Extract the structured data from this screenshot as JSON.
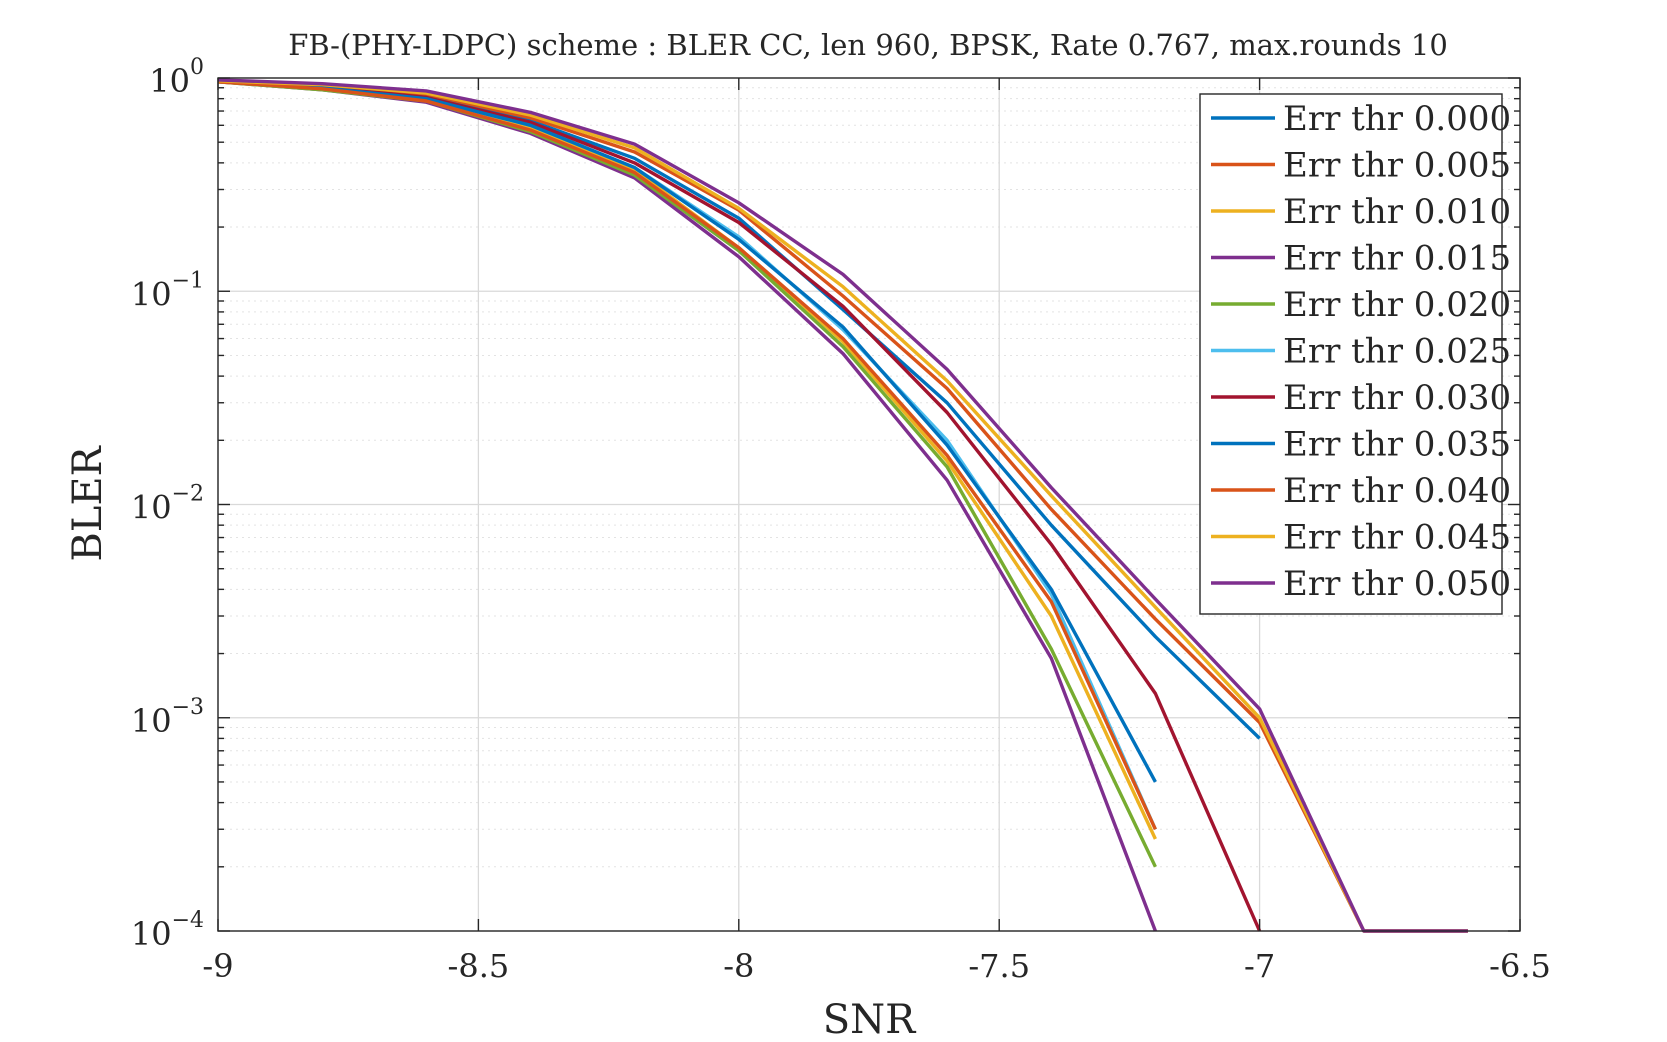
{
  "chart_data": {
    "type": "line",
    "title": "FB-(PHY-LDPC) scheme : BLER CC, len 960, BPSK, Rate 0.767, max.rounds 10",
    "xlabel": "SNR",
    "ylabel": "BLER",
    "xlim": [
      -9,
      -6.5
    ],
    "ylim": [
      0.0001,
      1
    ],
    "yscale": "log",
    "grid": true,
    "legend_position": "top-right",
    "x_ticks": [
      -9,
      -8.5,
      -8,
      -7.5,
      -7,
      -6.5
    ],
    "x_tick_labels": [
      "-9",
      "-8.5",
      "-8",
      "-7.5",
      "-7",
      "-6.5"
    ],
    "y_ticks": [
      {
        "base": "10",
        "exp": "0",
        "value": 1
      },
      {
        "base": "10",
        "exp": "−1",
        "value": 0.1
      },
      {
        "base": "10",
        "exp": "−2",
        "value": 0.01
      },
      {
        "base": "10",
        "exp": "−3",
        "value": 0.001
      },
      {
        "base": "10",
        "exp": "−4",
        "value": 0.0001
      }
    ],
    "series": [
      {
        "name": "Err thr 0.000",
        "color": "#0072BD",
        "x": [
          -9,
          -8.8,
          -8.6,
          -8.4,
          -8.2,
          -8.0,
          -7.8,
          -7.6,
          -7.4,
          -7.2,
          -7.0
        ],
        "y": [
          0.97,
          0.91,
          0.83,
          0.63,
          0.42,
          0.22,
          0.082,
          0.03,
          0.008,
          0.0024,
          0.0008
        ]
      },
      {
        "name": "Err thr 0.005",
        "color": "#D95319",
        "x": [
          -9,
          -8.8,
          -8.6,
          -8.4,
          -8.2,
          -8.0,
          -7.8,
          -7.6,
          -7.4,
          -7.2,
          -7.0,
          -6.8,
          -6.6
        ],
        "y": [
          0.97,
          0.92,
          0.84,
          0.65,
          0.45,
          0.24,
          0.095,
          0.035,
          0.0095,
          0.0029,
          0.00095,
          0.0001,
          0.0001
        ]
      },
      {
        "name": "Err thr 0.010",
        "color": "#EDB120",
        "x": [
          -9,
          -8.8,
          -8.6,
          -8.4,
          -8.2,
          -8.0,
          -7.8,
          -7.6,
          -7.4,
          -7.2
        ],
        "y": [
          0.96,
          0.89,
          0.79,
          0.58,
          0.37,
          0.16,
          0.058,
          0.016,
          0.003,
          0.00027
        ]
      },
      {
        "name": "Err thr 0.015",
        "color": "#7E2F8E",
        "x": [
          -9,
          -8.8,
          -8.6,
          -8.4,
          -8.2,
          -8.0,
          -7.8,
          -7.6,
          -7.4,
          -7.2
        ],
        "y": [
          0.96,
          0.88,
          0.77,
          0.55,
          0.34,
          0.145,
          0.051,
          0.013,
          0.0019,
          0.0001
        ]
      },
      {
        "name": "Err thr 0.020",
        "color": "#77AC30",
        "x": [
          -9,
          -8.8,
          -8.6,
          -8.4,
          -8.2,
          -8.0,
          -7.8,
          -7.6,
          -7.4,
          -7.2
        ],
        "y": [
          0.96,
          0.88,
          0.78,
          0.56,
          0.35,
          0.155,
          0.055,
          0.015,
          0.0021,
          0.0002
        ]
      },
      {
        "name": "Err thr 0.025",
        "color": "#4DBEEE",
        "x": [
          -9,
          -8.8,
          -8.6,
          -8.4,
          -8.2,
          -8.0,
          -7.8,
          -7.6,
          -7.4,
          -7.2
        ],
        "y": [
          0.97,
          0.9,
          0.8,
          0.6,
          0.38,
          0.18,
          0.066,
          0.02,
          0.0038,
          0.0003
        ]
      },
      {
        "name": "Err thr 0.030",
        "color": "#A2142F",
        "x": [
          -9,
          -8.8,
          -8.6,
          -8.4,
          -8.2,
          -8.0,
          -7.8,
          -7.6,
          -7.4,
          -7.2,
          -7.0
        ],
        "y": [
          0.97,
          0.91,
          0.81,
          0.62,
          0.4,
          0.21,
          0.085,
          0.027,
          0.0065,
          0.0013,
          0.0001
        ]
      },
      {
        "name": "Err thr 0.035",
        "color": "#0072BD",
        "x": [
          -9,
          -8.8,
          -8.6,
          -8.4,
          -8.2,
          -8.0,
          -7.8,
          -7.6,
          -7.4,
          -7.2
        ],
        "y": [
          0.97,
          0.9,
          0.8,
          0.6,
          0.38,
          0.175,
          0.068,
          0.019,
          0.004,
          0.0005
        ]
      },
      {
        "name": "Err thr 0.040",
        "color": "#D95319",
        "x": [
          -9,
          -8.8,
          -8.6,
          -8.4,
          -8.2,
          -8.0,
          -7.8,
          -7.6,
          -7.4,
          -7.2
        ],
        "y": [
          0.96,
          0.89,
          0.78,
          0.57,
          0.36,
          0.16,
          0.06,
          0.017,
          0.0035,
          0.0003
        ]
      },
      {
        "name": "Err thr 0.045",
        "color": "#EDB120",
        "x": [
          -9,
          -8.8,
          -8.6,
          -8.4,
          -8.2,
          -8.0,
          -7.8,
          -7.6,
          -7.4,
          -7.2,
          -7.0,
          -6.8,
          -6.6
        ],
        "y": [
          0.97,
          0.93,
          0.85,
          0.67,
          0.47,
          0.245,
          0.105,
          0.038,
          0.011,
          0.0033,
          0.001,
          0.0001,
          0.0001
        ]
      },
      {
        "name": "Err thr 0.050",
        "color": "#7E2F8E",
        "x": [
          -9,
          -8.8,
          -8.6,
          -8.4,
          -8.2,
          -8.0,
          -7.8,
          -7.6,
          -7.4,
          -7.2,
          -7.0,
          -6.8,
          -6.6
        ],
        "y": [
          0.98,
          0.94,
          0.87,
          0.69,
          0.49,
          0.26,
          0.12,
          0.043,
          0.012,
          0.0036,
          0.0011,
          0.0001,
          0.0001
        ]
      }
    ]
  }
}
